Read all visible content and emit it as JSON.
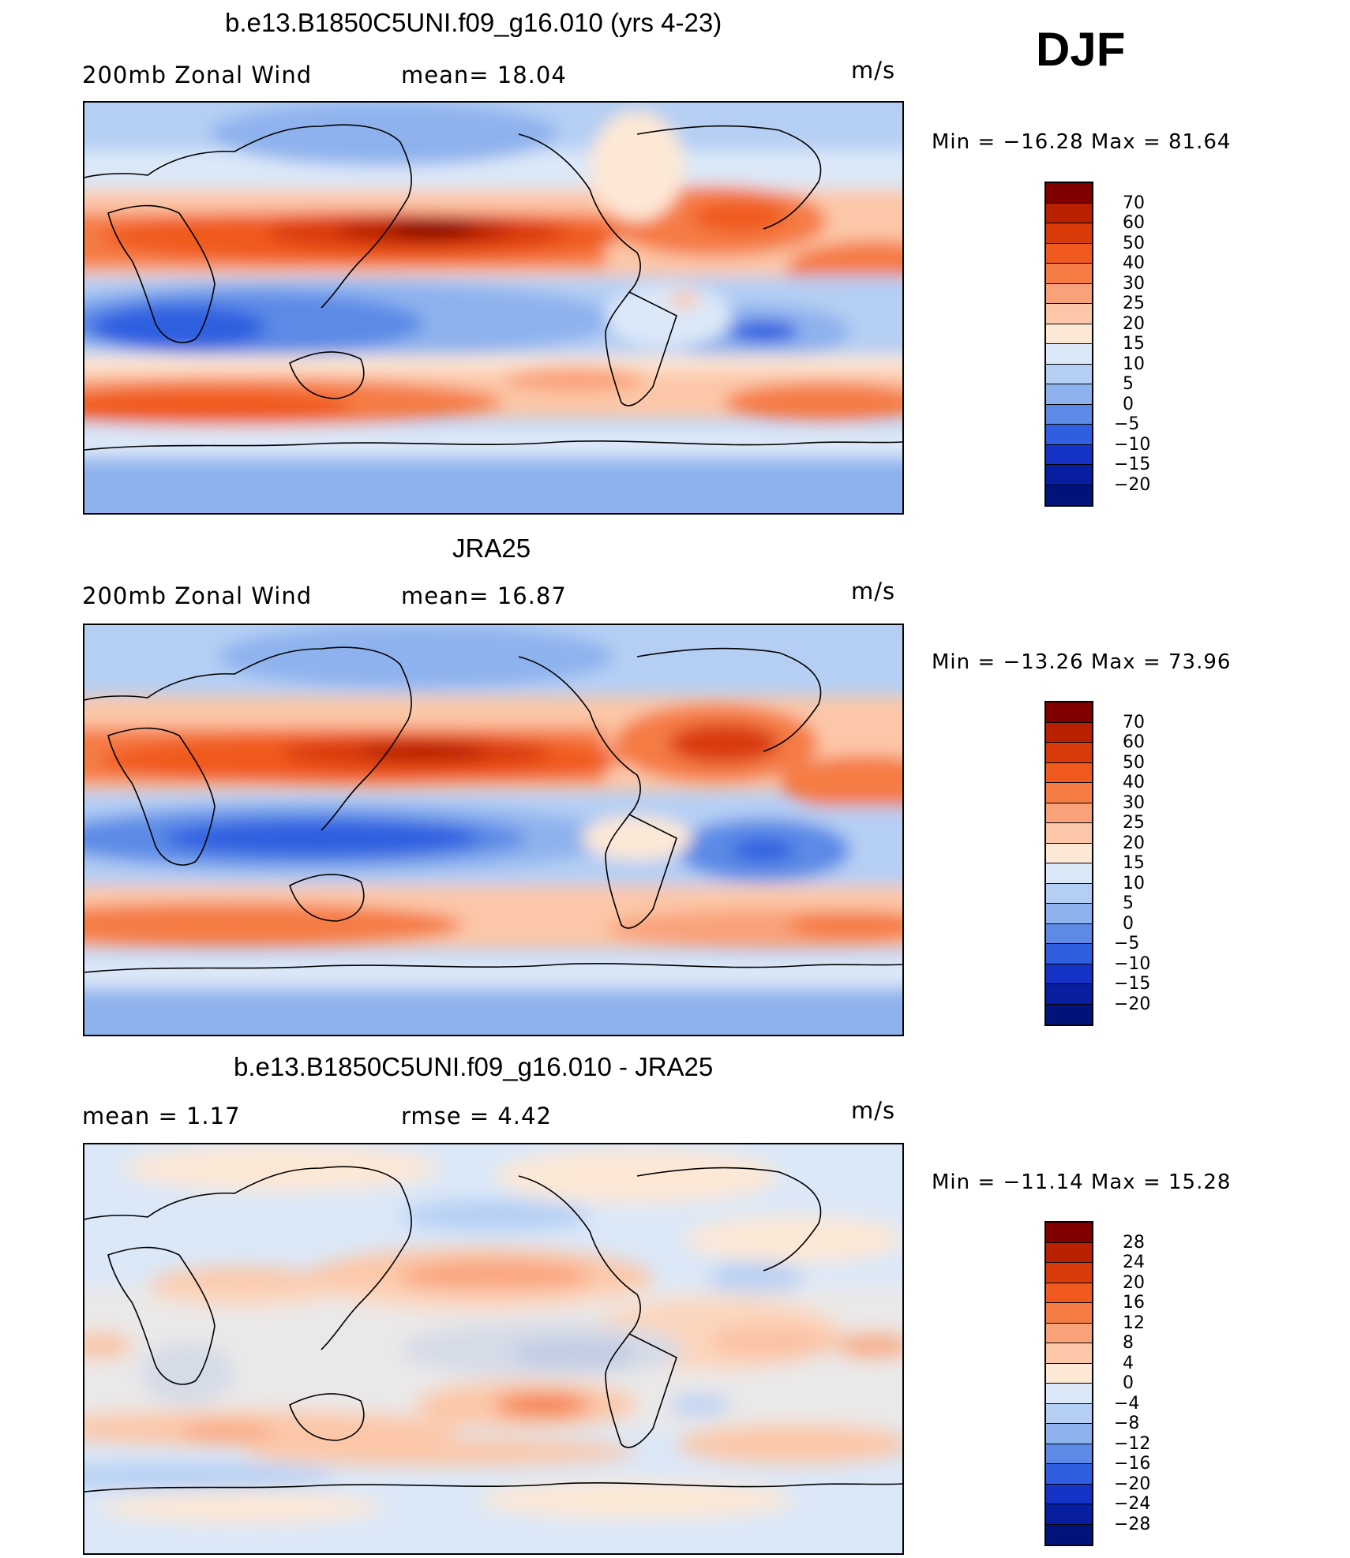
{
  "season": "DJF",
  "panels": [
    {
      "id": "model",
      "title": "b.e13.B1850C5UNI.f09_g16.010 (yrs 4-23)",
      "left_label": "200mb  Zonal  Wind",
      "mid_label": "mean=   18.04",
      "units": "m/s",
      "minmax": "Min  =  −16.28  Max  =    81.64",
      "levels": [
        "70",
        "60",
        "50",
        "40",
        "30",
        "25",
        "20",
        "15",
        "10",
        "5",
        "0",
        "−5",
        "−10",
        "−15",
        "−20"
      ],
      "colors": [
        "#800000",
        "#b82000",
        "#d93a0a",
        "#f05a1e",
        "#f57c45",
        "#f9a27a",
        "#fcc7a8",
        "#fde8d6",
        "#dbe8f8",
        "#b5cff4",
        "#8eb2ee",
        "#5c8ae6",
        "#2f5fe0",
        "#1633c8",
        "#071ea0",
        "#00137a"
      ],
      "fields": {
        "nh_jet": {
          "value": 75,
          "units": "m/s"
        },
        "sh_jet": {
          "value": 45,
          "units": "m/s"
        },
        "tropical_easterly": {
          "value": -10,
          "units": "m/s"
        }
      }
    },
    {
      "id": "obs",
      "title": "JRA25",
      "left_label": "200mb  Zonal  Wind",
      "mid_label": "mean=   16.87",
      "units": "m/s",
      "minmax": "Min  =  −13.26  Max  =    73.96",
      "levels": [
        "70",
        "60",
        "50",
        "40",
        "30",
        "25",
        "20",
        "15",
        "10",
        "5",
        "0",
        "−5",
        "−10",
        "−15",
        "−20"
      ],
      "colors": [
        "#800000",
        "#b82000",
        "#d93a0a",
        "#f05a1e",
        "#f57c45",
        "#f9a27a",
        "#fcc7a8",
        "#fde8d6",
        "#dbe8f8",
        "#b5cff4",
        "#8eb2ee",
        "#5c8ae6",
        "#2f5fe0",
        "#1633c8",
        "#071ea0",
        "#00137a"
      ],
      "fields": {
        "nh_jet": {
          "value": 70,
          "units": "m/s"
        },
        "sh_jet": {
          "value": 40,
          "units": "m/s"
        },
        "tropical_easterly": {
          "value": -10,
          "units": "m/s"
        }
      }
    },
    {
      "id": "diff",
      "title": "b.e13.B1850C5UNI.f09_g16.010 - JRA25",
      "left_label": "mean  =      1.17",
      "mid_label": "rmse  =      4.42",
      "units": "m/s",
      "minmax": "Min  =  −11.14  Max  =    15.28",
      "levels": [
        "28",
        "24",
        "20",
        "16",
        "12",
        "8",
        "4",
        "0",
        "−4",
        "−8",
        "−12",
        "−16",
        "−20",
        "−24",
        "−28"
      ],
      "colors": [
        "#800000",
        "#b82000",
        "#d93a0a",
        "#f05a1e",
        "#f57c45",
        "#f9a27a",
        "#fcc7a8",
        "#fde8d6",
        "#dbe8f8",
        "#b5cff4",
        "#8eb2ee",
        "#5c8ae6",
        "#2f5fe0",
        "#1633c8",
        "#071ea0",
        "#00137a"
      ],
      "fields": {
        "pacific_jet_diff": {
          "value": 8,
          "units": "m/s"
        },
        "tropical_pacific_diff": {
          "value": -8,
          "units": "m/s"
        }
      }
    }
  ]
}
